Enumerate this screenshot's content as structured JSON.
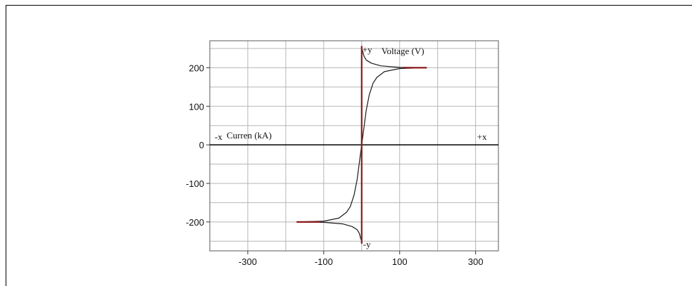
{
  "chart_data": {
    "type": "line",
    "title": "",
    "xlabel": "Curren (kA)",
    "ylabel": "Voltage (V)",
    "x_ticks": [
      "-300",
      "-100",
      "100",
      "300"
    ],
    "y_ticks": [
      "200",
      "100",
      "0",
      "-100",
      "-200"
    ],
    "xlim": [
      -400,
      360
    ],
    "ylim": [
      -275,
      270
    ],
    "axis_markers": {
      "pos_x": "+x",
      "neg_x": "-x",
      "pos_y": "+y",
      "neg_y": "-y"
    },
    "grid": true,
    "colors": {
      "curve": "#1a1a1a",
      "saturation": "#8b1a1a",
      "grid": "#b5b5b5",
      "axis": "#000000"
    },
    "series": [
      {
        "x": [
          -170,
          -100,
          -60,
          -40,
          -30,
          -20,
          -12,
          -6,
          0,
          6,
          12,
          20,
          30,
          40,
          60,
          100,
          170
        ],
        "y": [
          -200,
          -198,
          -190,
          -175,
          -160,
          -130,
          -90,
          -45,
          0,
          45,
          90,
          130,
          160,
          175,
          190,
          198,
          200
        ]
      },
      {
        "x": [
          -170,
          -100,
          -50,
          -25,
          -12,
          -6,
          -2
        ],
        "y": [
          -200,
          -201,
          -205,
          -212,
          -220,
          -230,
          -245
        ]
      },
      {
        "x": [
          2,
          6,
          12,
          25,
          50,
          100,
          170
        ],
        "y": [
          245,
          230,
          220,
          212,
          205,
          201,
          200
        ]
      },
      {
        "x": [
          -170,
          -110
        ],
        "y": [
          -200,
          -200
        ]
      },
      {
        "x": [
          110,
          170
        ],
        "y": [
          200,
          200
        ]
      },
      {
        "x": [
          0,
          0
        ],
        "y": [
          -255,
          255
        ]
      }
    ]
  }
}
